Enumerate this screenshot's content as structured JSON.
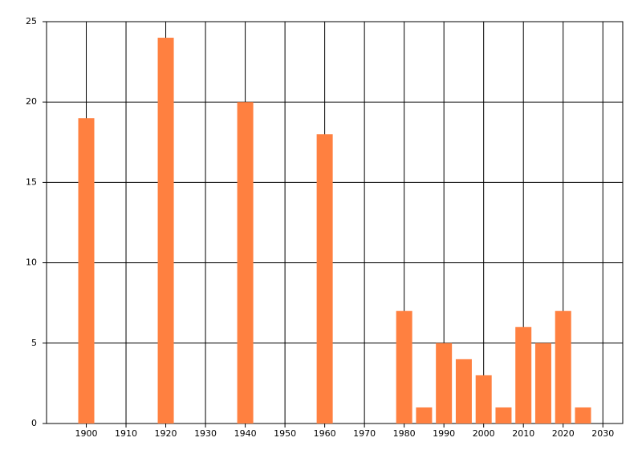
{
  "chart_data": {
    "type": "bar",
    "x": [
      1900,
      1920,
      1940,
      1960,
      1980,
      1985,
      1990,
      1995,
      2000,
      2005,
      2010,
      2015,
      2020,
      2025
    ],
    "values": [
      19,
      24,
      20,
      18,
      7,
      1,
      5,
      4,
      3,
      1,
      6,
      5,
      7,
      1
    ],
    "color": "#ff8040",
    "xlim": [
      1890,
      2035
    ],
    "xticks": [
      1900,
      1910,
      1920,
      1930,
      1940,
      1950,
      1960,
      1970,
      1980,
      1990,
      2000,
      2010,
      2020,
      2030
    ],
    "ylim": [
      0,
      25
    ],
    "yticks": [
      0,
      5,
      10,
      15,
      20,
      25
    ],
    "grid": true
  }
}
